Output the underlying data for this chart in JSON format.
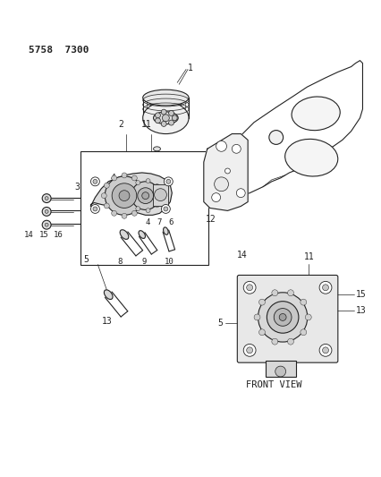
{
  "title": "5758  7300",
  "background_color": "#ffffff",
  "line_color": "#222222",
  "figsize": [
    4.27,
    5.33
  ],
  "dpi": 100,
  "front_view_label": "FRONT VIEW"
}
